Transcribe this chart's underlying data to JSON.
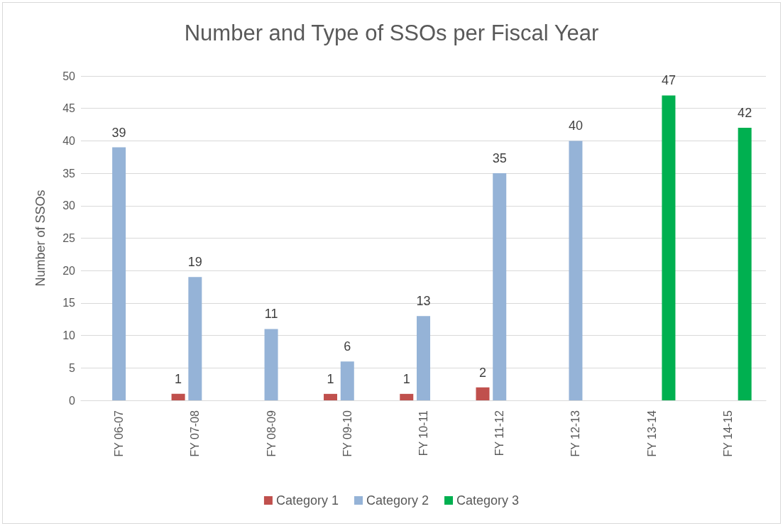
{
  "chart_data": {
    "type": "bar",
    "title": "Number and Type of SSOs per Fiscal Year",
    "ylabel": "Number of SSOs",
    "categories": [
      "FY 06-07",
      "FY 07-08",
      "FY 08-09",
      "FY 09-10",
      "FY 10-11",
      "FY 11-12",
      "FY 12-13",
      "FY 13-14",
      "FY 14-15"
    ],
    "series": [
      {
        "name": "Category 1",
        "color": "#c0504d",
        "values": [
          null,
          1,
          null,
          1,
          1,
          2,
          null,
          null,
          null
        ]
      },
      {
        "name": "Category 2",
        "color": "#95b3d7",
        "values": [
          39,
          19,
          11,
          6,
          13,
          35,
          40,
          null,
          null
        ]
      },
      {
        "name": "Category 3",
        "color": "#00b050",
        "values": [
          null,
          null,
          null,
          null,
          null,
          null,
          null,
          47,
          42
        ]
      }
    ],
    "ylim": [
      0,
      50
    ],
    "yticks": [
      0,
      5,
      10,
      15,
      20,
      25,
      30,
      35,
      40,
      45,
      50
    ],
    "grid": "y",
    "legend": "bottom",
    "data_labels": true
  }
}
